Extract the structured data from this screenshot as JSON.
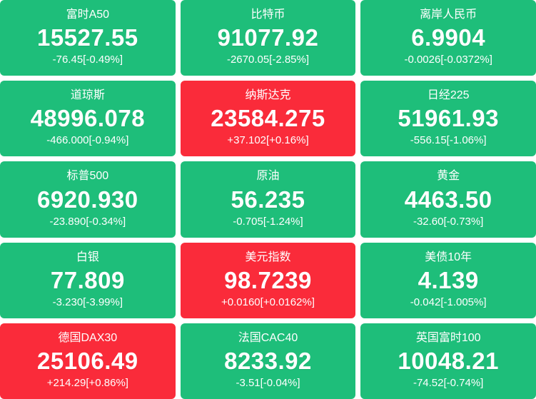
{
  "colors": {
    "up_bg": "#fa2b3a",
    "down_bg": "#1ebe7a",
    "text": "#ffffff",
    "page_bg": "#ffffff"
  },
  "tiles": [
    {
      "name": "富时A50",
      "value": "15527.55",
      "change": "-76.45[-0.49%]",
      "trend": "down"
    },
    {
      "name": "比特币",
      "value": "91077.92",
      "change": "-2670.05[-2.85%]",
      "trend": "down"
    },
    {
      "name": "离岸人民币",
      "value": "6.9904",
      "change": "-0.0026[-0.0372%]",
      "trend": "down"
    },
    {
      "name": "道琼斯",
      "value": "48996.078",
      "change": "-466.000[-0.94%]",
      "trend": "down"
    },
    {
      "name": "纳斯达克",
      "value": "23584.275",
      "change": "+37.102[+0.16%]",
      "trend": "up"
    },
    {
      "name": "日经225",
      "value": "51961.93",
      "change": "-556.15[-1.06%]",
      "trend": "down"
    },
    {
      "name": "标普500",
      "value": "6920.930",
      "change": "-23.890[-0.34%]",
      "trend": "down"
    },
    {
      "name": "原油",
      "value": "56.235",
      "change": "-0.705[-1.24%]",
      "trend": "down"
    },
    {
      "name": "黄金",
      "value": "4463.50",
      "change": "-32.60[-0.73%]",
      "trend": "down"
    },
    {
      "name": "白银",
      "value": "77.809",
      "change": "-3.230[-3.99%]",
      "trend": "down"
    },
    {
      "name": "美元指数",
      "value": "98.7239",
      "change": "+0.0160[+0.0162%]",
      "trend": "up"
    },
    {
      "name": "美债10年",
      "value": "4.139",
      "change": "-0.042[-1.005%]",
      "trend": "down"
    },
    {
      "name": "德国DAX30",
      "value": "25106.49",
      "change": "+214.29[+0.86%]",
      "trend": "up"
    },
    {
      "name": "法国CAC40",
      "value": "8233.92",
      "change": "-3.51[-0.04%]",
      "trend": "down"
    },
    {
      "name": "英国富时100",
      "value": "10048.21",
      "change": "-74.52[-0.74%]",
      "trend": "down"
    }
  ]
}
